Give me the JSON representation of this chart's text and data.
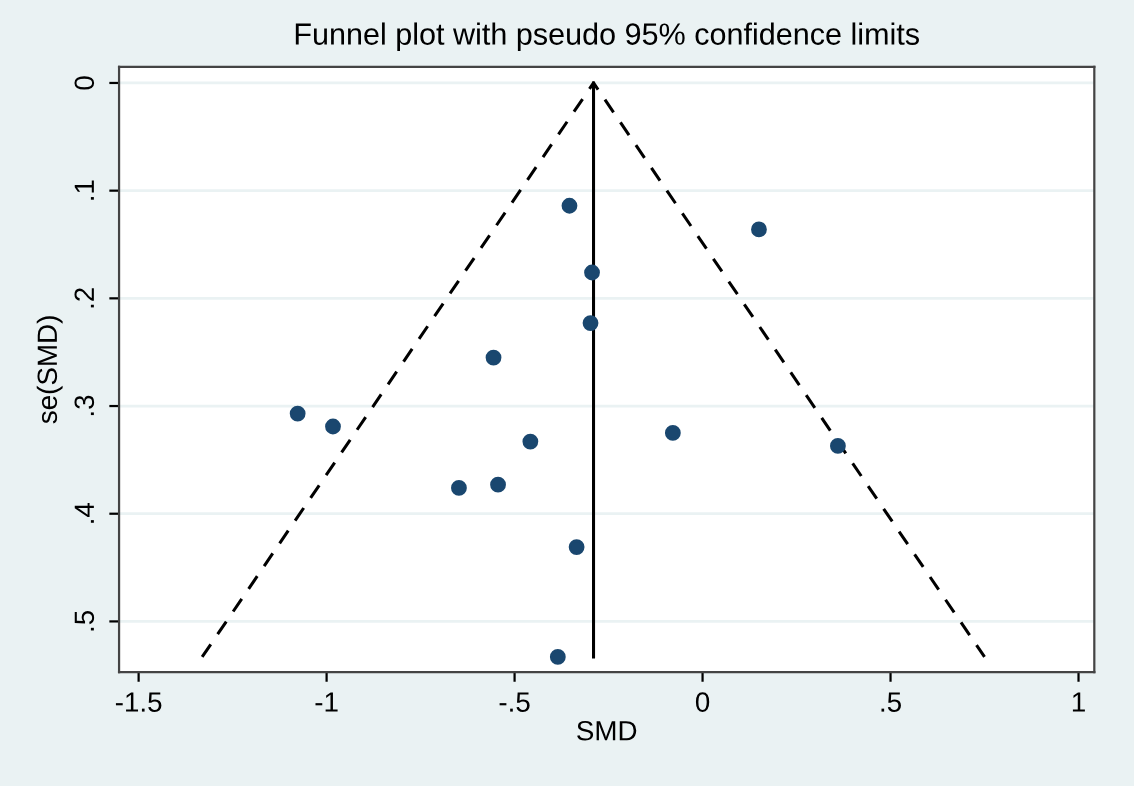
{
  "chart_data": {
    "type": "scatter",
    "title": "Funnel plot with pseudo 95% confidence limits",
    "xlabel": "SMD",
    "ylabel": "se(SMD)",
    "series": [
      {
        "color": "#1a476f",
        "marker": "circle",
        "x": [
          -0.354,
          0.15,
          -0.294,
          -0.298,
          -0.556,
          -1.077,
          -0.983,
          -0.458,
          -0.079,
          0.36,
          -0.648,
          -0.544,
          -0.335,
          -0.385
        ],
        "values": [
          0.114,
          0.136,
          0.176,
          0.223,
          0.255,
          0.307,
          0.319,
          0.333,
          0.325,
          0.337,
          0.376,
          0.373,
          0.431,
          0.533
        ]
      },
      {
        "type": "line",
        "color": "#000000",
        "line_style": "solid",
        "x": [
          -0.29,
          -0.29
        ],
        "values": [
          0,
          0.533
        ]
      },
      {
        "type": "line",
        "color": "#000000",
        "line_style": "dashed",
        "x": [
          -1.331,
          -0.29,
          0.75
        ],
        "values": [
          0.533,
          0,
          0.533
        ]
      }
    ],
    "xlim": [
      -1.552,
      1.042
    ],
    "ylim": [
      0.547,
      -0.015
    ],
    "xticks": [
      {
        "value": -1.5,
        "label": "-1.5"
      },
      {
        "value": -1,
        "label": "-1"
      },
      {
        "value": -0.5,
        "label": "-.5"
      },
      {
        "value": 0,
        "label": "0"
      },
      {
        "value": 0.5,
        "label": ".5"
      },
      {
        "value": 1,
        "label": "1"
      }
    ],
    "yticks": [
      {
        "value": 0,
        "label": "0"
      },
      {
        "value": 0.1,
        "label": ".1"
      },
      {
        "value": 0.2,
        "label": ".2"
      },
      {
        "value": 0.3,
        "label": ".3"
      },
      {
        "value": 0.4,
        "label": ".4"
      },
      {
        "value": 0.5,
        "label": ".5"
      }
    ],
    "grid": "y"
  }
}
